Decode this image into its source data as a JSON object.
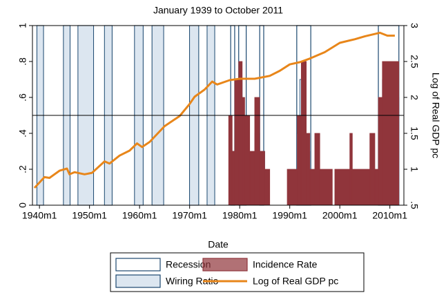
{
  "chart_data": {
    "type": "combo",
    "title": "January 1939 to October 2011",
    "x_label": "Date",
    "y2_label": "Log of Real GDP pc",
    "xlim": [
      1938.6,
      2012.8
    ],
    "xticks": [
      {
        "value": 1940,
        "label": "1940m1"
      },
      {
        "value": 1950,
        "label": "1950m1"
      },
      {
        "value": 1960,
        "label": "1960m1"
      },
      {
        "value": 1970,
        "label": "1970m1"
      },
      {
        "value": 1980,
        "label": "1980m1"
      },
      {
        "value": 1990,
        "label": "1990m1"
      },
      {
        "value": 2000,
        "label": "2000m1"
      },
      {
        "value": 2010,
        "label": "2010m1"
      }
    ],
    "ylim": [
      0,
      1
    ],
    "yticks": [
      0,
      {
        "value": 0.2,
        "label": ".2"
      },
      {
        "value": 0.4,
        "label": ".4"
      },
      {
        "value": 0.6,
        "label": ".6"
      },
      {
        "value": 0.8,
        "label": ".8"
      },
      1
    ],
    "y2lim": [
      0.5,
      3
    ],
    "y2ticks": [
      {
        "value": 0.5,
        "label": ".5"
      },
      1,
      1.5,
      2,
      2.5,
      3
    ],
    "hline": 0.5,
    "series": [
      {
        "name": "Recession",
        "type": "interval",
        "color": "#1a476f",
        "value": 1,
        "intervals": [
          [
            1939.5,
            1940.8
          ],
          [
            1944.8,
            1946.1
          ],
          [
            1947.7,
            1950.8
          ],
          [
            1953,
            1954.5
          ],
          [
            1959,
            1960.7
          ],
          [
            1962.5,
            1964.8
          ],
          [
            1970,
            1971.8
          ],
          [
            1973.5,
            1975
          ],
          [
            1978.2,
            1979
          ],
          [
            1979.8,
            1981.3
          ],
          [
            1984,
            1984.8
          ],
          [
            1991.4,
            1994.2
          ],
          [
            2007.7,
            2011.8
          ]
        ]
      },
      {
        "name": "Wiring Ratio",
        "type": "step",
        "color": "#dce6f0",
        "stroke": "#1a476f",
        "x": [
          1939.5,
          1940.8,
          1944.8,
          1946.1,
          1947.7,
          1950.8,
          1953,
          1954.5,
          1959,
          1960.7,
          1962.5,
          1964.8,
          1970,
          1971.8,
          1973.5,
          1975,
          1978.2,
          1979,
          1979.8,
          1980.5,
          1981.3,
          1982,
          1983,
          1984,
          1985,
          1991.4,
          1992,
          1992.9,
          1994,
          2007.7,
          2008.5,
          2009.3,
          2009.6,
          2010.2,
          2011.8
        ],
        "values": [
          1,
          0,
          1,
          0,
          1,
          0,
          1,
          0,
          1,
          0,
          1,
          0,
          1,
          0,
          1,
          0,
          0.3,
          0.5,
          0.7,
          0.5,
          0.3,
          0.2,
          0.4,
          0.3,
          0,
          0.4,
          0.7,
          0.3,
          0,
          0.4,
          0.7,
          0.5,
          0.3,
          0.6,
          0
        ]
      },
      {
        "name": "Incidence Rate",
        "type": "step",
        "color": "#90353b",
        "stroke": "#90353b",
        "x": [
          1977.8,
          1978.5,
          1979,
          1979.8,
          1980.5,
          1981,
          1982,
          1983,
          1984,
          1985,
          1986,
          1989.5,
          1991.5,
          1992.3,
          1993.3,
          1994,
          1995,
          1996,
          1998.5,
          1999,
          2002,
          2002.5,
          2006,
          2007,
          2007.7,
          2008.5,
          2011.8
        ],
        "values": [
          0.5,
          0.3,
          0.7,
          0.8,
          0.6,
          0.5,
          0.3,
          0.6,
          0.3,
          0.2,
          0,
          0.2,
          0.5,
          0.8,
          0.4,
          0.2,
          0.4,
          0.2,
          0,
          0.2,
          0.4,
          0.2,
          0.4,
          0.2,
          0.6,
          0.8,
          0
        ]
      },
      {
        "name": "Log of Real GDP pc",
        "type": "line",
        "axis": "y2",
        "color": "#e8861a",
        "x": [
          1939,
          1941,
          1942,
          1944,
          1945.5,
          1946,
          1947,
          1949,
          1950.5,
          1953,
          1954,
          1956,
          1958,
          1959.5,
          1960.5,
          1962,
          1965,
          1968,
          1970,
          1971,
          1973,
          1974.5,
          1975.5,
          1978,
          1980,
          1983,
          1986,
          1988,
          1990,
          1992,
          1994,
          1997,
          2000,
          2003,
          2005,
          2008,
          2009.5,
          2011
        ],
        "values": [
          0.74,
          0.89,
          0.88,
          0.98,
          1.01,
          0.93,
          0.96,
          0.93,
          0.95,
          1.11,
          1.08,
          1.19,
          1.26,
          1.36,
          1.31,
          1.38,
          1.6,
          1.74,
          1.91,
          2.01,
          2.11,
          2.22,
          2.18,
          2.24,
          2.26,
          2.26,
          2.3,
          2.37,
          2.46,
          2.49,
          2.54,
          2.63,
          2.76,
          2.81,
          2.85,
          2.9,
          2.86,
          2.86
        ]
      }
    ]
  }
}
